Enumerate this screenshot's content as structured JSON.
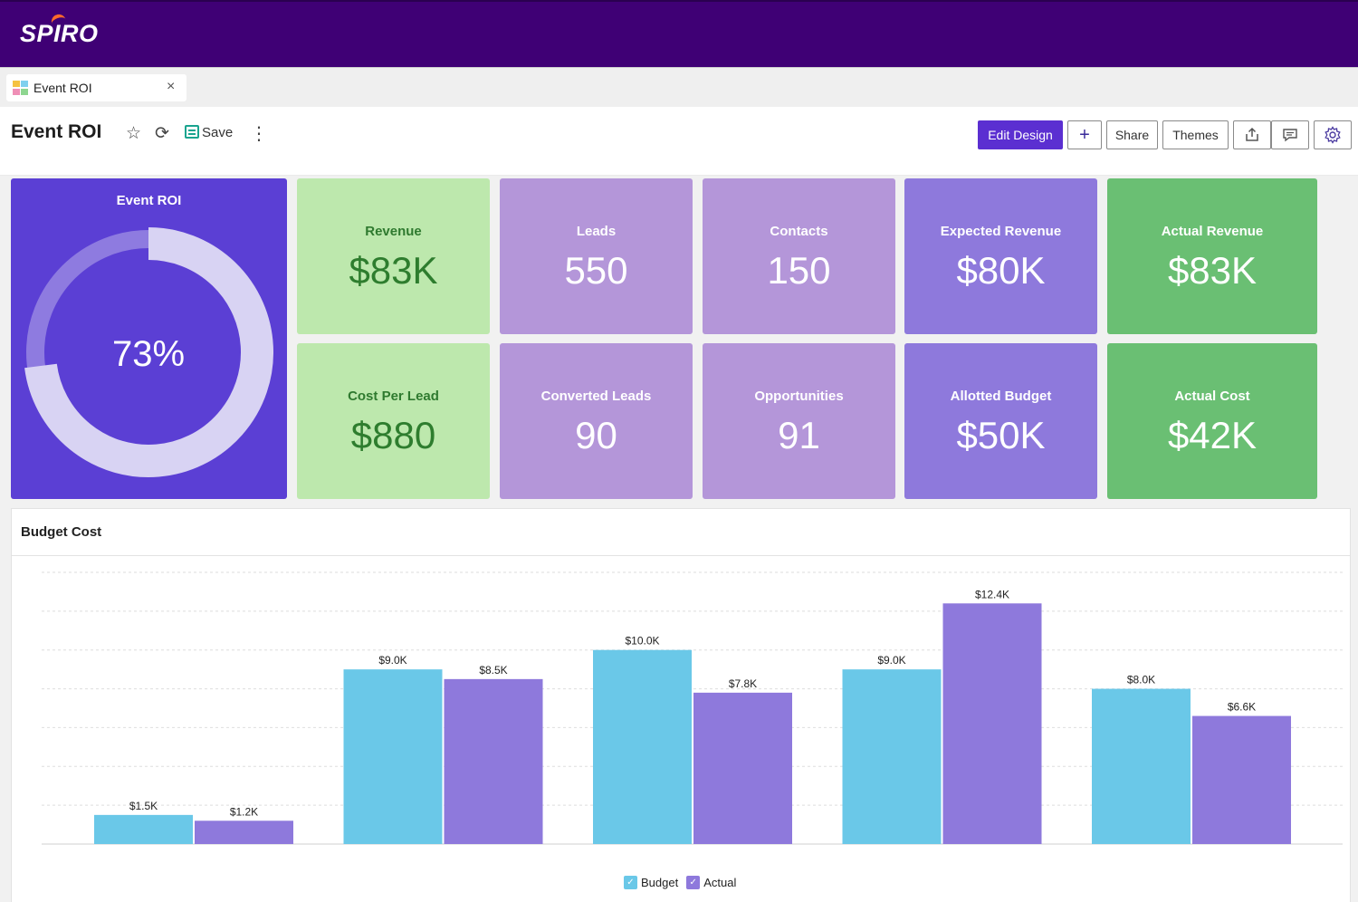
{
  "app": {
    "brand": "SPIRO"
  },
  "tab": {
    "label": "Event ROI",
    "close": "×"
  },
  "header": {
    "title": "Event ROI",
    "save_label": "Save",
    "buttons": {
      "edit_design": "Edit Design",
      "add": "+",
      "share": "Share",
      "themes": "Themes"
    }
  },
  "roi": {
    "title": "Event ROI",
    "value_label": "73%",
    "percent": 73
  },
  "tiles": [
    {
      "label": "Revenue",
      "value": "$83K"
    },
    {
      "label": "Leads",
      "value": "550"
    },
    {
      "label": "Contacts",
      "value": "150"
    },
    {
      "label": "Expected Revenue",
      "value": "$80K"
    },
    {
      "label": "Actual Revenue",
      "value": "$83K"
    },
    {
      "label": "Cost Per Lead",
      "value": "$880"
    },
    {
      "label": "Converted Leads",
      "value": "90"
    },
    {
      "label": "Opportunities",
      "value": "91"
    },
    {
      "label": "Allotted Budget",
      "value": "$50K"
    },
    {
      "label": "Actual Cost",
      "value": "$42K"
    }
  ],
  "colors": {
    "budget": "#6ac8e8",
    "actual": "#8e79dc",
    "roi_card": "#5b3fd4",
    "tile_light_green": "#bde8ad",
    "tile_lilac": "#b496d9",
    "tile_violet": "#8e79dc",
    "tile_green": "#6abf73"
  },
  "chart_data": {
    "type": "bar",
    "title": "Budget Cost",
    "categories": [
      "",
      "",
      "",
      "",
      ""
    ],
    "series": [
      {
        "name": "Budget",
        "values": [
          1.5,
          9.0,
          10.0,
          9.0,
          8.0
        ],
        "labels": [
          "$1.5K",
          "$9.0K",
          "$10.0K",
          "$9.0K",
          "$8.0K"
        ]
      },
      {
        "name": "Actual",
        "values": [
          1.2,
          8.5,
          7.8,
          12.4,
          6.6
        ],
        "labels": [
          "$1.2K",
          "$8.5K",
          "$7.8K",
          "$12.4K",
          "$6.6K"
        ]
      }
    ],
    "ylim": [
      0,
      14
    ],
    "grid": true,
    "legend": "bottom-center"
  }
}
